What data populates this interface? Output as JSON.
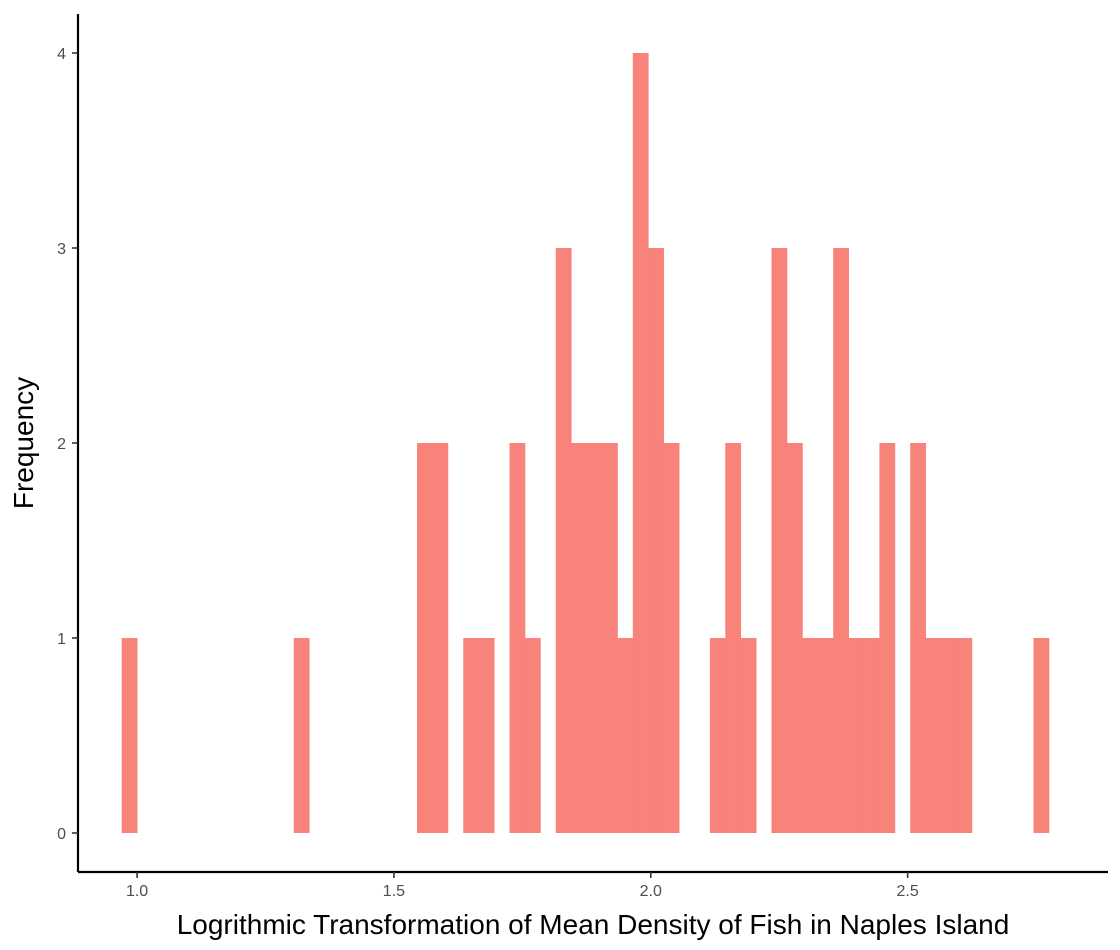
{
  "chart_data": {
    "type": "bar",
    "subtype": "histogram",
    "title": "",
    "xlabel": "Logrithmic Transformation of Mean Density of Fish in Naples Island",
    "ylabel": "Frequency",
    "xlim": [
      0.885,
      2.89
    ],
    "ylim": [
      -0.2,
      4.2
    ],
    "bin_width": 0.03,
    "x_ticks": [
      1.0,
      1.5,
      2.0,
      2.5
    ],
    "x_tick_labels": [
      "1.0",
      "1.5",
      "2.0",
      "2.5"
    ],
    "y_ticks": [
      0,
      1,
      2,
      3,
      4
    ],
    "y_tick_labels": [
      "0",
      "1",
      "2",
      "3",
      "4"
    ],
    "bar_color": "#F8837A",
    "grid": false,
    "legend": "none",
    "bins": [
      {
        "x": 0.985,
        "count": 1
      },
      {
        "x": 1.32,
        "count": 1
      },
      {
        "x": 1.56,
        "count": 2
      },
      {
        "x": 1.59,
        "count": 2
      },
      {
        "x": 1.65,
        "count": 1
      },
      {
        "x": 1.68,
        "count": 1
      },
      {
        "x": 1.74,
        "count": 2
      },
      {
        "x": 1.77,
        "count": 1
      },
      {
        "x": 1.83,
        "count": 3
      },
      {
        "x": 1.86,
        "count": 2
      },
      {
        "x": 1.89,
        "count": 2
      },
      {
        "x": 1.92,
        "count": 2
      },
      {
        "x": 1.95,
        "count": 1
      },
      {
        "x": 1.98,
        "count": 4
      },
      {
        "x": 2.01,
        "count": 3
      },
      {
        "x": 2.04,
        "count": 2
      },
      {
        "x": 2.13,
        "count": 1
      },
      {
        "x": 2.16,
        "count": 2
      },
      {
        "x": 2.19,
        "count": 1
      },
      {
        "x": 2.25,
        "count": 3
      },
      {
        "x": 2.28,
        "count": 2
      },
      {
        "x": 2.31,
        "count": 1
      },
      {
        "x": 2.34,
        "count": 1
      },
      {
        "x": 2.37,
        "count": 3
      },
      {
        "x": 2.4,
        "count": 1
      },
      {
        "x": 2.43,
        "count": 1
      },
      {
        "x": 2.46,
        "count": 2
      },
      {
        "x": 2.52,
        "count": 2
      },
      {
        "x": 2.55,
        "count": 1
      },
      {
        "x": 2.58,
        "count": 1
      },
      {
        "x": 2.61,
        "count": 1
      },
      {
        "x": 2.76,
        "count": 1
      }
    ]
  }
}
